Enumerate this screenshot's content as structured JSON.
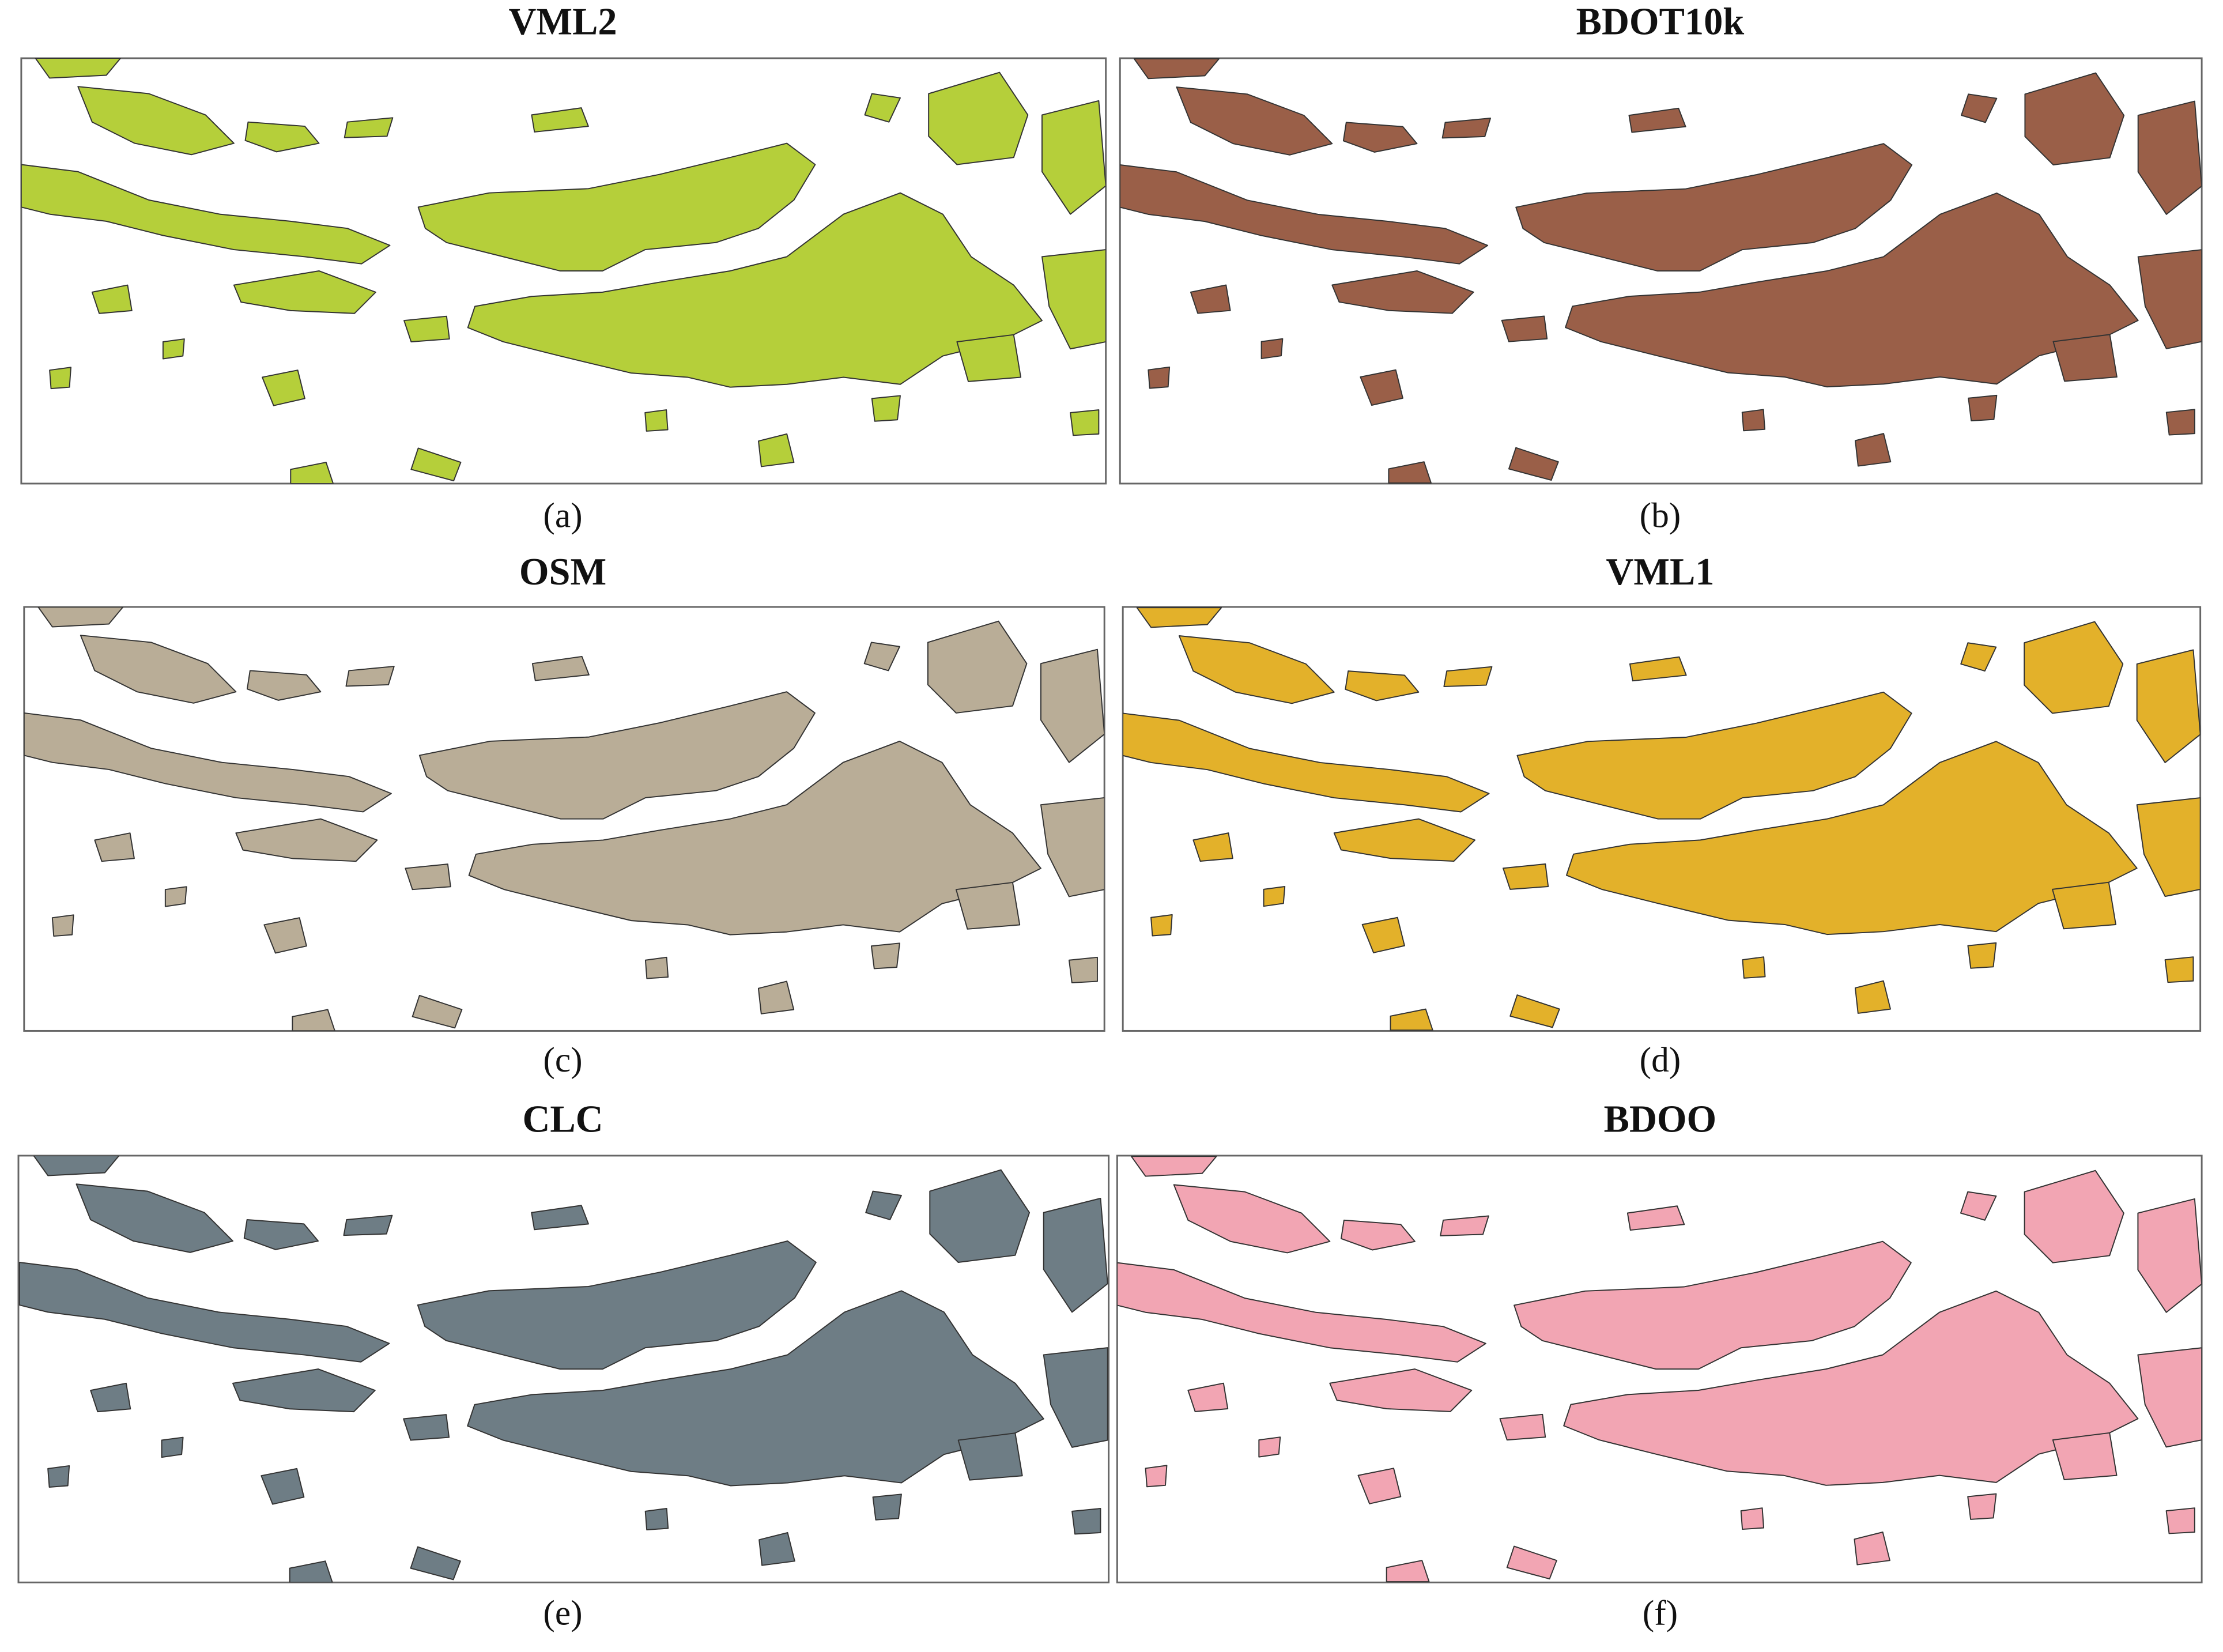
{
  "panels": [
    {
      "title": "VML2",
      "label": "(a)"
    },
    {
      "title": "BDOT10k",
      "label": "(b)"
    },
    {
      "title": "OSM",
      "label": "(c)"
    },
    {
      "title": "VML1",
      "label": "(d)"
    },
    {
      "title": "CLC",
      "label": "(e)"
    },
    {
      "title": "BDOO",
      "label": "(f)"
    }
  ]
}
